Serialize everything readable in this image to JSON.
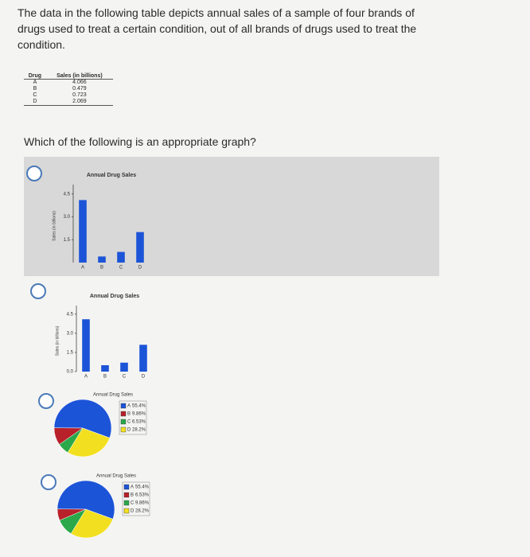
{
  "question": "The data in the following table depicts annual sales of a sample of four brands of drugs used to treat a certain condition, out of all brands of drugs used to treat the condition.",
  "table": {
    "header": [
      "Drug",
      "Sales (in billions)"
    ],
    "rows": [
      [
        "A",
        4.066
      ],
      [
        "B",
        0.479
      ],
      [
        "C",
        0.723
      ],
      [
        "D",
        2.069
      ]
    ]
  },
  "prompt": "Which of the following is an appropriate graph?",
  "options": [
    {
      "chart_data": {
        "type": "bar",
        "title": "Annual Drug Sales",
        "y_label": "Sales (in billions)",
        "categories": [
          "A",
          "B",
          "C",
          "D"
        ],
        "values": [
          4.1,
          0.4,
          0.7,
          2.0
        ],
        "color": "#1c54d8",
        "ylim": [
          0,
          4.8
        ],
        "yticks": [
          {
            "value": 1.5,
            "label": "1.5"
          },
          {
            "value": 3,
            "label": "3.0"
          },
          4.5
        ]
      }
    },
    {
      "chart_data": {
        "type": "bar",
        "title": "Annual Drug Sales",
        "y_label": "Sales (in billions)",
        "categories": [
          "A",
          "B",
          "C",
          "D"
        ],
        "values": [
          4.1,
          0.5,
          0.7,
          2.1
        ],
        "color": "#1c54d8",
        "ylim": [
          0,
          4.8
        ],
        "yticks": [
          {
            "value": 0,
            "label": "0.0"
          },
          {
            "value": 1.5,
            "label": "1.5"
          },
          {
            "value": 3,
            "label": "3.0"
          },
          4.5
        ]
      }
    },
    {
      "chart_data": {
        "type": "pie",
        "title": "Annual Drug Sales",
        "categories": [
          "A",
          "B",
          "C",
          "D"
        ],
        "values": [
          55.4,
          9.86,
          6.53,
          28.2
        ],
        "value_labels": [
          "55.4%",
          "9.86%",
          "6.53%",
          "28.2%"
        ],
        "colors": [
          "#1c54d8",
          "#b8202a",
          "#2aa84a",
          "#f2e020"
        ]
      }
    },
    {
      "chart_data": {
        "type": "pie",
        "title": "Annual Drug Sales",
        "categories": [
          "A",
          "B",
          "C",
          "D"
        ],
        "values": [
          55.4,
          6.53,
          9.86,
          28.2
        ],
        "value_labels": [
          "55.4%",
          "6.53%",
          "9.86%",
          "28.2%"
        ],
        "colors": [
          "#1c54d8",
          "#b8202a",
          "#2aa84a",
          "#f2e020"
        ]
      }
    }
  ]
}
